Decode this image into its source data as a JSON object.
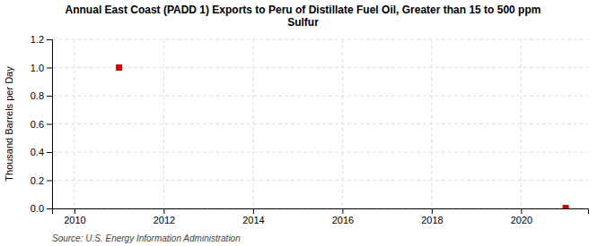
{
  "chart_data": {
    "type": "scatter",
    "title": "Annual East Coast (PADD 1) Exports to Peru of Distillate Fuel Oil, Greater than 15 to 500 ppm\nSulfur",
    "ylabel": "Thousand Barrels per Day",
    "source": "Source: U.S. Energy Information Administration",
    "x": [
      2011,
      2021
    ],
    "values": [
      1.0,
      0.003
    ],
    "color": "#cc0000",
    "marker": "square",
    "xlim": [
      2009.5,
      2021.5
    ],
    "ylim": [
      0.0,
      1.2
    ],
    "xticks": [
      2010,
      2012,
      2014,
      2016,
      2018,
      2020
    ],
    "yticks": [
      {
        "value": 0.0,
        "label": "0.0"
      },
      0.2,
      0.4,
      0.6,
      0.8,
      {
        "value": 1.0,
        "label": "1.0"
      },
      1.2
    ],
    "grid": true
  }
}
